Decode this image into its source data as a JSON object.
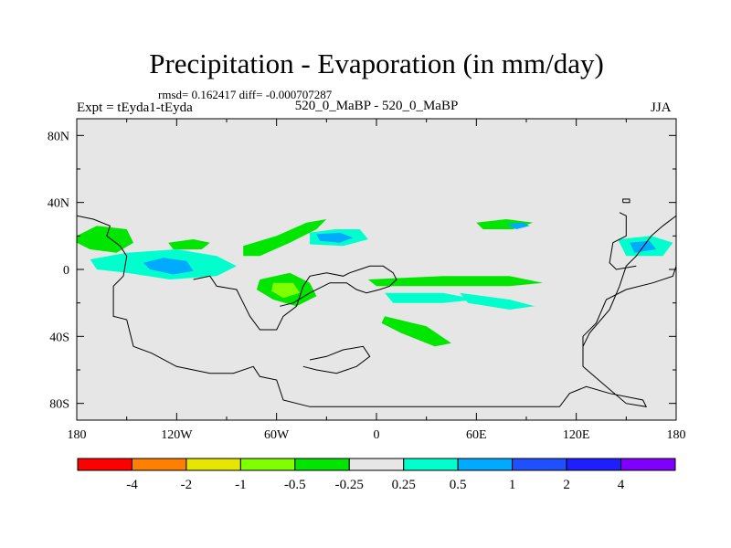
{
  "header": {
    "title": "Precipitation - Evaporation (in mm/day)",
    "stats": "rmsd= 0.162417 diff= -0.000707287",
    "experiment": "Expt = tEyda1-tEyda",
    "period": "520_0_MaBP - 520_0_MaBP",
    "season": "JJA"
  },
  "colors": {
    "background_field": "#e6e6e6",
    "outline": "#000000"
  },
  "chart_data": {
    "type": "heatmap",
    "title": "Precipitation - Evaporation (in mm/day)",
    "x_ticks": [
      "180",
      "120W",
      "60W",
      "0",
      "60E",
      "120E",
      "180"
    ],
    "x_tick_values": [
      -180,
      -120,
      -60,
      0,
      60,
      120,
      180
    ],
    "y_ticks": [
      "80N",
      "40N",
      "0",
      "40S",
      "80S"
    ],
    "y_tick_values": [
      80,
      40,
      0,
      -40,
      -80
    ],
    "xlim": [
      -180,
      180
    ],
    "ylim": [
      -90,
      90
    ],
    "colorbar": {
      "labels": [
        "-4",
        "-2",
        "-1",
        "-0.5",
        "-0.25",
        "0.25",
        "0.5",
        "1",
        "2",
        "4"
      ],
      "colors": [
        "#ff0000",
        "#ff8000",
        "#e6e600",
        "#80ff00",
        "#00e600",
        "#e6e6e6",
        "#00ffcc",
        "#00aaff",
        "#1e50ff",
        "#1e1eff",
        "#8000ff"
      ]
    },
    "anomaly_patches": [
      {
        "name": "tropical-pacific-west-green",
        "level": "-0.5",
        "color": "#00e600",
        "polygon": [
          [
            -180,
            20
          ],
          [
            -168,
            26
          ],
          [
            -150,
            24
          ],
          [
            -146,
            16
          ],
          [
            -156,
            10
          ],
          [
            -172,
            12
          ],
          [
            -180,
            16
          ]
        ]
      },
      {
        "name": "tropical-pacific-cyan",
        "level": "0.5",
        "color": "#00ffcc",
        "polygon": [
          [
            -172,
            6
          ],
          [
            -150,
            10
          ],
          [
            -120,
            12
          ],
          [
            -96,
            8
          ],
          [
            -84,
            2
          ],
          [
            -96,
            -4
          ],
          [
            -124,
            -6
          ],
          [
            -150,
            -2
          ],
          [
            -168,
            0
          ]
        ]
      },
      {
        "name": "tropical-pacific-blue",
        "level": "1",
        "color": "#00aaff",
        "polygon": [
          [
            -140,
            4
          ],
          [
            -128,
            7
          ],
          [
            -114,
            5
          ],
          [
            -110,
            -1
          ],
          [
            -122,
            -3
          ],
          [
            -136,
            0
          ]
        ]
      },
      {
        "name": "east-pacific-green",
        "level": "-0.5",
        "color": "#00e600",
        "polygon": [
          [
            -125,
            16
          ],
          [
            -110,
            18
          ],
          [
            -100,
            16
          ],
          [
            -105,
            12
          ],
          [
            -122,
            12
          ]
        ]
      },
      {
        "name": "caribbean-green-band",
        "level": "-0.5",
        "color": "#00e600",
        "polygon": [
          [
            -80,
            14
          ],
          [
            -60,
            20
          ],
          [
            -42,
            28
          ],
          [
            -30,
            30
          ],
          [
            -36,
            24
          ],
          [
            -52,
            16
          ],
          [
            -70,
            8
          ],
          [
            -80,
            8
          ]
        ]
      },
      {
        "name": "north-atlantic-cyan",
        "level": "0.5",
        "color": "#00ffcc",
        "polygon": [
          [
            -40,
            22
          ],
          [
            -25,
            24
          ],
          [
            -10,
            24
          ],
          [
            -5,
            18
          ],
          [
            -20,
            14
          ],
          [
            -40,
            15
          ]
        ]
      },
      {
        "name": "north-atlantic-blue",
        "level": "1",
        "color": "#00aaff",
        "polygon": [
          [
            -36,
            21
          ],
          [
            -22,
            22
          ],
          [
            -14,
            19
          ],
          [
            -22,
            16
          ],
          [
            -34,
            17
          ]
        ]
      },
      {
        "name": "south-atlantic-green",
        "level": "-0.5",
        "color": "#00e600",
        "polygon": [
          [
            -70,
            -6
          ],
          [
            -52,
            -2
          ],
          [
            -40,
            -8
          ],
          [
            -36,
            -16
          ],
          [
            -48,
            -22
          ],
          [
            -62,
            -18
          ],
          [
            -72,
            -12
          ]
        ]
      },
      {
        "name": "south-atlantic-yellowgreen",
        "level": "-1",
        "color": "#80ff00",
        "polygon": [
          [
            -62,
            -8
          ],
          [
            -50,
            -8
          ],
          [
            -46,
            -14
          ],
          [
            -56,
            -17
          ],
          [
            -63,
            -13
          ]
        ]
      },
      {
        "name": "indian-ocean-green-band",
        "level": "-0.5",
        "color": "#00e600",
        "polygon": [
          [
            -5,
            -6
          ],
          [
            40,
            -4
          ],
          [
            80,
            -4
          ],
          [
            100,
            -8
          ],
          [
            80,
            -10
          ],
          [
            30,
            -10
          ],
          [
            0,
            -10
          ]
        ]
      },
      {
        "name": "indian-ocean-cyan",
        "level": "0.5",
        "color": "#00ffcc",
        "polygon": [
          [
            5,
            -14
          ],
          [
            40,
            -14
          ],
          [
            60,
            -18
          ],
          [
            40,
            -20
          ],
          [
            10,
            -20
          ]
        ]
      },
      {
        "name": "south-indian-green",
        "level": "-0.5",
        "color": "#00e600",
        "polygon": [
          [
            5,
            -28
          ],
          [
            30,
            -34
          ],
          [
            45,
            -44
          ],
          [
            35,
            -46
          ],
          [
            15,
            -38
          ],
          [
            3,
            -32
          ]
        ]
      },
      {
        "name": "east-indian-cyan",
        "level": "0.5",
        "color": "#00ffcc",
        "polygon": [
          [
            50,
            -14
          ],
          [
            80,
            -18
          ],
          [
            95,
            -22
          ],
          [
            80,
            -24
          ],
          [
            55,
            -20
          ]
        ]
      },
      {
        "name": "north-indian-green",
        "level": "-0.5",
        "color": "#00e600",
        "polygon": [
          [
            60,
            28
          ],
          [
            78,
            30
          ],
          [
            94,
            28
          ],
          [
            82,
            24
          ],
          [
            64,
            24
          ]
        ]
      },
      {
        "name": "north-indian-blue",
        "level": "1",
        "color": "#00aaff",
        "polygon": [
          [
            78,
            27
          ],
          [
            88,
            28
          ],
          [
            92,
            26
          ],
          [
            84,
            24
          ]
        ]
      },
      {
        "name": "west-pacific-cyan",
        "level": "0.5",
        "color": "#00ffcc",
        "polygon": [
          [
            145,
            18
          ],
          [
            165,
            20
          ],
          [
            178,
            16
          ],
          [
            172,
            8
          ],
          [
            150,
            8
          ]
        ]
      },
      {
        "name": "west-pacific-blue",
        "level": "1",
        "color": "#00aaff",
        "polygon": [
          [
            152,
            16
          ],
          [
            164,
            17
          ],
          [
            168,
            12
          ],
          [
            155,
            10
          ]
        ]
      }
    ],
    "continent_outlines": [
      {
        "name": "pangea-laurentia-gondwana",
        "polyline": [
          [
            -180,
            32
          ],
          [
            -170,
            30
          ],
          [
            -160,
            26
          ],
          [
            -162,
            20
          ],
          [
            -154,
            14
          ],
          [
            -150,
            8
          ],
          [
            -152,
            -4
          ],
          [
            -158,
            -10
          ],
          [
            -158,
            -28
          ],
          [
            -150,
            -30
          ],
          [
            -146,
            -46
          ],
          [
            -135,
            -50
          ],
          [
            -120,
            -58
          ],
          [
            -100,
            -62
          ],
          [
            -86,
            -62
          ],
          [
            -74,
            -58
          ],
          [
            -70,
            -64
          ],
          [
            -60,
            -66
          ],
          [
            -56,
            -78
          ],
          [
            -40,
            -82
          ],
          [
            0,
            -82
          ],
          [
            110,
            -82
          ],
          [
            116,
            -74
          ],
          [
            126,
            -70
          ],
          [
            140,
            -74
          ],
          [
            160,
            -78
          ],
          [
            162,
            -82
          ],
          [
            150,
            -80
          ],
          [
            138,
            -70
          ],
          [
            124,
            -58
          ],
          [
            124,
            -40
          ],
          [
            132,
            -32
          ],
          [
            138,
            -18
          ],
          [
            150,
            -12
          ],
          [
            166,
            -8
          ],
          [
            178,
            -4
          ],
          [
            180,
            2
          ]
        ]
      },
      {
        "name": "east-gondwana-edge",
        "polyline": [
          [
            180,
            32
          ],
          [
            172,
            26
          ],
          [
            165,
            20
          ],
          [
            156,
            8
          ],
          [
            150,
            2
          ],
          [
            146,
            -10
          ],
          [
            140,
            -24
          ],
          [
            128,
            -38
          ],
          [
            124,
            -46
          ]
        ]
      },
      {
        "name": "north-china-block",
        "polyline": [
          [
            146,
            34
          ],
          [
            150,
            32
          ],
          [
            150,
            20
          ],
          [
            142,
            16
          ],
          [
            140,
            4
          ],
          [
            144,
            0
          ],
          [
            156,
            2
          ]
        ]
      },
      {
        "name": "siberia-laurentia",
        "polyline": [
          [
            -110,
            -6
          ],
          [
            -100,
            -4
          ],
          [
            -96,
            -10
          ],
          [
            -84,
            -12
          ],
          [
            -80,
            -20
          ],
          [
            -76,
            -28
          ],
          [
            -70,
            -36
          ],
          [
            -60,
            -36
          ],
          [
            -56,
            -28
          ],
          [
            -48,
            -22
          ],
          [
            -44,
            -10
          ],
          [
            -40,
            -4
          ],
          [
            -30,
            -2
          ],
          [
            -20,
            -4
          ],
          [
            -16,
            -2
          ],
          [
            -10,
            0
          ],
          [
            -4,
            2
          ],
          [
            4,
            2
          ],
          [
            10,
            -2
          ],
          [
            12,
            -6
          ],
          [
            8,
            -10
          ],
          [
            2,
            -12
          ],
          [
            -6,
            -14
          ],
          [
            -12,
            -12
          ],
          [
            -18,
            -8
          ],
          [
            -28,
            -8
          ],
          [
            -40,
            -14
          ],
          [
            -50,
            -20
          ],
          [
            -58,
            -22
          ]
        ]
      },
      {
        "name": "baltica-block",
        "polyline": [
          [
            -40,
            -54
          ],
          [
            -30,
            -52
          ],
          [
            -20,
            -48
          ],
          [
            -8,
            -46
          ],
          [
            -4,
            -52
          ],
          [
            -12,
            -58
          ],
          [
            -24,
            -62
          ],
          [
            -36,
            -60
          ],
          [
            -44,
            -58
          ]
        ]
      },
      {
        "name": "small-island",
        "polyline": [
          [
            148,
            40
          ],
          [
            152,
            40
          ],
          [
            152,
            42
          ],
          [
            148,
            42
          ],
          [
            148,
            40
          ]
        ]
      }
    ]
  }
}
